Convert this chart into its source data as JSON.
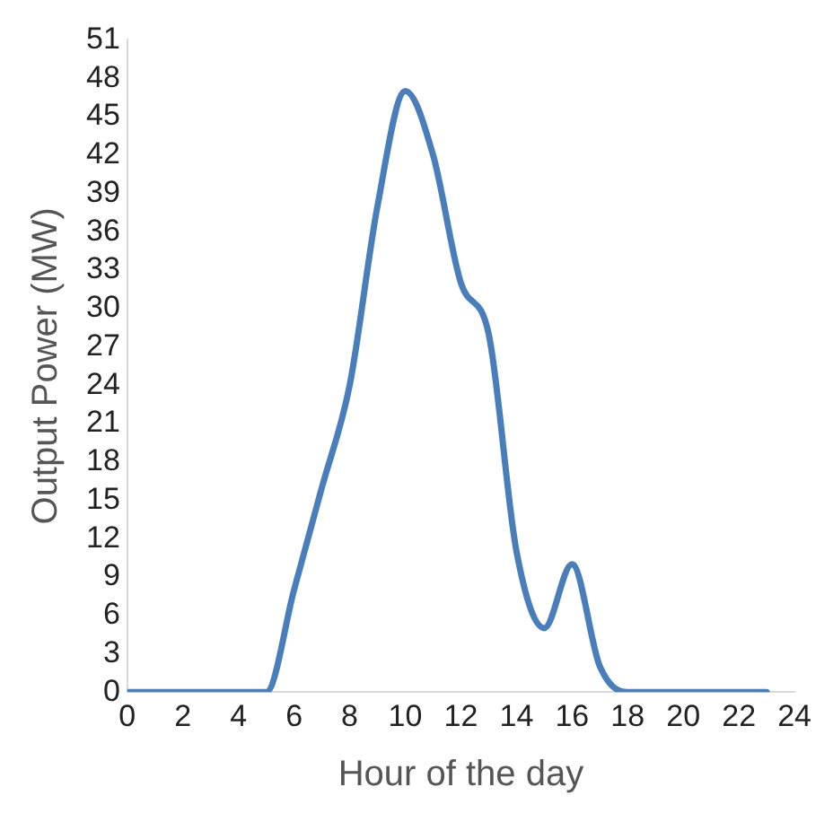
{
  "chart_data": {
    "type": "line",
    "xlabel": "Hour of the day",
    "ylabel": "Output Power (MW)",
    "x": [
      0,
      1,
      2,
      3,
      4,
      5,
      6,
      7,
      8,
      9,
      10,
      11,
      12,
      13,
      14,
      15,
      16,
      17,
      18,
      19,
      20,
      21,
      22,
      23
    ],
    "series": [
      {
        "color": "#4a7ebb",
        "values": [
          0,
          0,
          0,
          0,
          0,
          0,
          8,
          16,
          24,
          38,
          47,
          42,
          32,
          28,
          11,
          5,
          10,
          2,
          0,
          0,
          0,
          0,
          0,
          0
        ]
      }
    ],
    "xlim": [
      0,
      24
    ],
    "xticks": [
      0,
      2,
      4,
      6,
      8,
      10,
      12,
      14,
      16,
      18,
      20,
      22,
      24
    ],
    "ylim": [
      0,
      51
    ],
    "yticks": [
      0,
      3,
      6,
      9,
      12,
      15,
      18,
      21,
      24,
      27,
      30,
      33,
      36,
      39,
      42,
      45,
      48,
      51
    ],
    "grid": false,
    "legend": false,
    "marker": "none",
    "line_style": "solid"
  }
}
